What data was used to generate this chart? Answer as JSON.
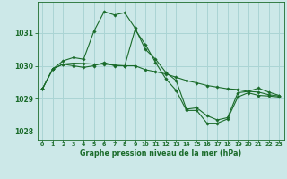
{
  "title": "Graphe pression niveau de la mer (hPa)",
  "bg_color": "#cce8e8",
  "grid_color": "#aad4d4",
  "line_color": "#1a6b2a",
  "xlim": [
    -0.5,
    23.5
  ],
  "ylim": [
    1027.75,
    1031.95
  ],
  "yticks": [
    1028,
    1029,
    1030,
    1031
  ],
  "xticks": [
    0,
    1,
    2,
    3,
    4,
    5,
    6,
    7,
    8,
    9,
    10,
    11,
    12,
    13,
    14,
    15,
    16,
    17,
    18,
    19,
    20,
    21,
    22,
    23
  ],
  "max_series": [
    1029.3,
    1029.9,
    1030.15,
    1030.25,
    1030.2,
    1031.05,
    1031.65,
    1031.55,
    1031.62,
    1031.15,
    1030.5,
    1030.2,
    1029.8,
    1029.55,
    1028.68,
    1028.72,
    1028.48,
    1028.35,
    1028.42,
    1029.18,
    1029.22,
    1029.32,
    1029.2,
    1029.1
  ],
  "min_series": [
    1029.3,
    1029.9,
    1030.05,
    1030.0,
    1029.95,
    1030.0,
    1030.1,
    1030.0,
    1030.0,
    1031.1,
    1030.65,
    1030.1,
    1029.6,
    1029.25,
    1028.64,
    1028.64,
    1028.25,
    1028.25,
    1028.38,
    1029.05,
    1029.18,
    1029.1,
    1029.08,
    1029.05
  ],
  "mean_series": [
    1029.3,
    1029.9,
    1030.05,
    1030.08,
    1030.07,
    1030.05,
    1030.05,
    1030.02,
    1030.0,
    1030.0,
    1029.88,
    1029.82,
    1029.75,
    1029.65,
    1029.55,
    1029.48,
    1029.4,
    1029.35,
    1029.3,
    1029.28,
    1029.22,
    1029.2,
    1029.12,
    1029.08
  ]
}
